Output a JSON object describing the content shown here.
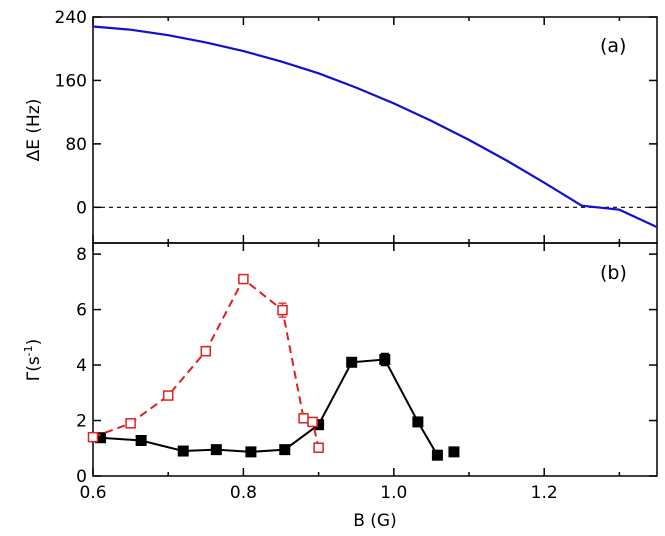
{
  "chart_data": [
    {
      "type": "line",
      "panel_label": "(a)",
      "ylabel": "ΔE (Hz)",
      "xlabel": "",
      "xlim": [
        0.6,
        1.35
      ],
      "ylim": [
        -45,
        240
      ],
      "yticks": [
        "0",
        "80",
        "160",
        "240"
      ],
      "ytick_values": [
        0,
        80,
        160,
        240
      ],
      "reference_line": {
        "y": 0,
        "style": "dashed"
      },
      "series": [
        {
          "color": "#1010d0",
          "x": [
            0.6,
            0.65,
            0.7,
            0.75,
            0.8,
            0.85,
            0.9,
            0.95,
            1.0,
            1.05,
            1.1,
            1.15,
            1.2,
            1.25,
            1.3,
            1.35
          ],
          "y": [
            228,
            224,
            217,
            208,
            197,
            184,
            169,
            151,
            131,
            109,
            85,
            59,
            31,
            2,
            -3,
            -25
          ]
        }
      ]
    },
    {
      "type": "line",
      "panel_label": "(b)",
      "ylabel": "Γ(s",
      "ylabel_sup": "-1",
      "ylabel_close": ")",
      "xlabel": "B (G)",
      "xlim": [
        0.6,
        1.35
      ],
      "ylim": [
        0,
        8.4
      ],
      "xticks": [
        "0.6",
        "0.8",
        "1.0",
        "1.2"
      ],
      "xtick_values": [
        0.6,
        0.8,
        1.0,
        1.2
      ],
      "yticks": [
        "0",
        "2",
        "4",
        "6",
        "8"
      ],
      "ytick_values": [
        0,
        2,
        4,
        6,
        8
      ],
      "series": [
        {
          "color": "#000000",
          "marker": "filled-square",
          "line": "solid",
          "x": [
            0.61,
            0.664,
            0.72,
            0.764,
            0.81,
            0.855,
            0.9,
            0.944,
            0.988,
            1.032,
            1.058,
            1.08
          ],
          "y": [
            1.38,
            1.28,
            0.9,
            0.95,
            0.87,
            0.95,
            1.85,
            4.1,
            4.2,
            1.95,
            0.75,
            0.87
          ],
          "err": [
            0,
            0,
            0,
            0,
            0,
            0,
            0,
            0,
            0.22,
            0,
            0,
            0
          ],
          "connected_points": 11
        },
        {
          "color": "#e02020",
          "marker": "open-square",
          "line": "dashed",
          "x": [
            0.6,
            0.65,
            0.7,
            0.75,
            0.8,
            0.852,
            0.88,
            0.892,
            0.9
          ],
          "y": [
            1.4,
            1.9,
            2.9,
            4.5,
            7.1,
            5.98,
            2.08,
            1.95,
            1.02
          ],
          "err": [
            0.05,
            0.1,
            0.12,
            0.12,
            0.15,
            0.25,
            0.12,
            0.1,
            0.12
          ]
        }
      ]
    }
  ]
}
